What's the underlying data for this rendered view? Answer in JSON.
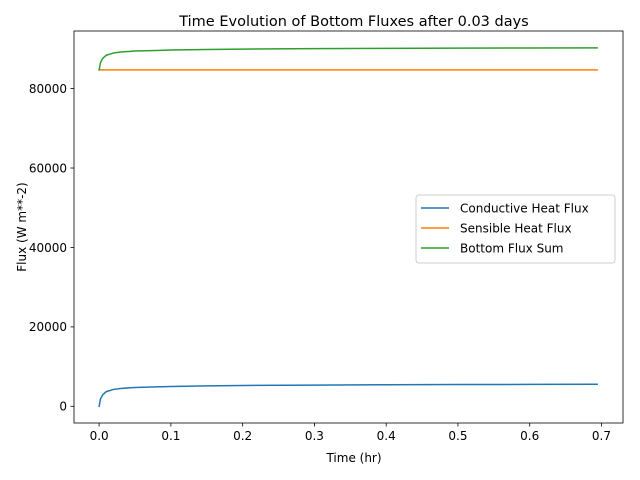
{
  "chart_data": {
    "type": "line",
    "title": "Time Evolution of Bottom Fluxes after 0.03 days",
    "xlabel": "Time (hr)",
    "ylabel": "Flux (W m**-2)",
    "xlim": [
      -0.035,
      0.73
    ],
    "ylim": [
      -4200,
      94500
    ],
    "xticks": [
      0.0,
      0.1,
      0.2,
      0.3,
      0.4,
      0.5,
      0.6,
      0.7
    ],
    "xtick_labels": [
      "0.0",
      "0.1",
      "0.2",
      "0.3",
      "0.4",
      "0.5",
      "0.6",
      "0.7"
    ],
    "yticks": [
      0,
      20000,
      40000,
      60000,
      80000
    ],
    "ytick_labels": [
      "0",
      "20000",
      "40000",
      "60000",
      "80000"
    ],
    "grid": false,
    "legend_position": "center-right",
    "series": [
      {
        "name": "Conductive Heat Flux",
        "color": "#1f77b4",
        "x": [
          0.0,
          0.002,
          0.005,
          0.01,
          0.02,
          0.03,
          0.05,
          0.08,
          0.1,
          0.15,
          0.2,
          0.3,
          0.4,
          0.5,
          0.6,
          0.694
        ],
        "y": [
          0,
          1900,
          2900,
          3700,
          4250,
          4500,
          4750,
          4900,
          5000,
          5150,
          5250,
          5350,
          5420,
          5480,
          5520,
          5560
        ]
      },
      {
        "name": "Sensible Heat Flux",
        "color": "#ff7f0e",
        "x": [
          0.0,
          0.1,
          0.2,
          0.3,
          0.4,
          0.5,
          0.6,
          0.694
        ],
        "y": [
          84700,
          84700,
          84700,
          84700,
          84700,
          84700,
          84700,
          84700
        ]
      },
      {
        "name": "Bottom Flux Sum",
        "color": "#2ca02c",
        "x": [
          0.0,
          0.002,
          0.005,
          0.01,
          0.02,
          0.03,
          0.05,
          0.08,
          0.1,
          0.15,
          0.2,
          0.3,
          0.4,
          0.5,
          0.6,
          0.694
        ],
        "y": [
          84700,
          86600,
          87600,
          88400,
          88950,
          89200,
          89450,
          89600,
          89700,
          89850,
          89950,
          90050,
          90120,
          90180,
          90220,
          90260
        ]
      }
    ]
  }
}
